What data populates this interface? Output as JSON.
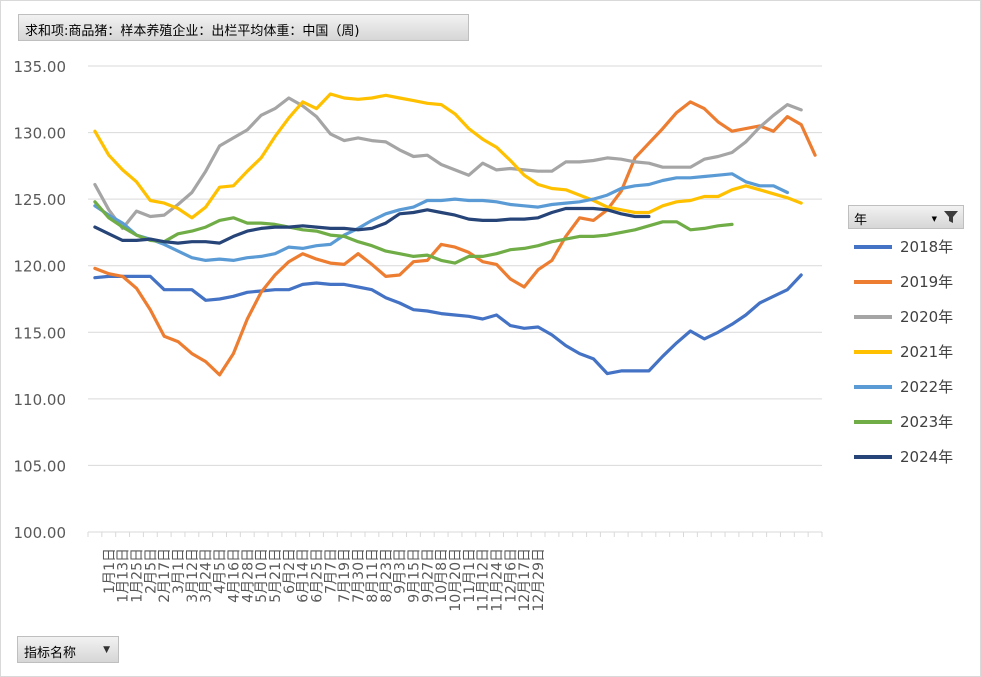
{
  "header": {
    "title": "求和项:商品猪：样本养殖企业：出栏平均体重：中国（周)"
  },
  "footer": {
    "field_label": "指标名称"
  },
  "legend": {
    "title": "年"
  },
  "chart_data": {
    "type": "line",
    "title": "",
    "ylim": [
      100,
      135
    ],
    "yticks": [
      "135.00",
      "130.00",
      "125.00",
      "120.00",
      "115.00",
      "110.00",
      "105.00",
      "100.00"
    ],
    "ytick_values": [
      135,
      130,
      125,
      120,
      115,
      110,
      105,
      100
    ],
    "x_count": 53,
    "x_labels": [
      "1月1日",
      "1月13日",
      "1月25日",
      "2月5日",
      "2月17日",
      "3月1日",
      "3月12日",
      "3月24日",
      "4月5日",
      "4月16日",
      "4月28日",
      "5月10日",
      "5月21日",
      "6月2日",
      "6月14日",
      "6月25日",
      "7月7日",
      "7月19日",
      "7月30日",
      "8月11日",
      "8月23日",
      "9月3日",
      "9月15日",
      "9月27日",
      "10月8日",
      "10月20日",
      "11月1日",
      "11月12日",
      "11月24日",
      "12月6日",
      "12月17日",
      "12月29日"
    ],
    "x_label_positions": [
      1,
      2,
      3,
      4,
      5,
      6,
      7,
      8,
      9,
      10,
      11,
      12,
      13,
      14,
      15,
      16,
      17,
      18,
      19,
      20,
      21,
      22,
      23,
      24,
      25,
      26,
      27,
      28,
      29,
      30,
      31,
      32
    ],
    "grid": true,
    "legend_position": "right",
    "series": [
      {
        "name": "2018年",
        "color": "#4472C4",
        "values": [
          119.1,
          119.2,
          119.2,
          119.2,
          119.2,
          118.2,
          118.2,
          118.2,
          117.4,
          117.5,
          117.7,
          118.0,
          118.1,
          118.2,
          118.2,
          118.6,
          118.7,
          118.6,
          118.6,
          118.4,
          118.2,
          117.6,
          117.2,
          116.7,
          116.6,
          116.4,
          116.3,
          116.2,
          116.0,
          116.3,
          115.5,
          115.3,
          115.4,
          114.8,
          114.0,
          113.4,
          113.0,
          111.9,
          112.1,
          112.1,
          112.1,
          113.2,
          114.2,
          115.1,
          114.5,
          115.0,
          115.6,
          116.3,
          117.2,
          117.7,
          118.2,
          119.3
        ]
      },
      {
        "name": "2019年",
        "color": "#ED7D31",
        "values": [
          119.8,
          119.4,
          119.2,
          118.3,
          116.7,
          114.7,
          114.3,
          113.4,
          112.8,
          111.8,
          113.4,
          116.0,
          118.0,
          119.3,
          120.3,
          120.9,
          120.5,
          120.2,
          120.1,
          120.9,
          120.1,
          119.2,
          119.3,
          120.3,
          120.4,
          121.6,
          121.4,
          121.0,
          120.3,
          120.1,
          119.0,
          118.4,
          119.7,
          120.4,
          122.2,
          123.6,
          123.4,
          124.2,
          125.6,
          128.1,
          129.2,
          130.3,
          131.5,
          132.3,
          131.8,
          130.8,
          130.1,
          130.3,
          130.5,
          130.1,
          131.2,
          130.6,
          128.3
        ]
      },
      {
        "name": "2020年",
        "color": "#A5A5A5",
        "values": [
          126.1,
          124.2,
          122.8,
          124.1,
          123.7,
          123.8,
          124.6,
          125.5,
          127.1,
          129.0,
          129.6,
          130.2,
          131.3,
          131.8,
          132.6,
          132.0,
          131.2,
          129.9,
          129.4,
          129.6,
          129.4,
          129.3,
          128.7,
          128.2,
          128.3,
          127.6,
          127.2,
          126.8,
          127.7,
          127.2,
          127.3,
          127.2,
          127.1,
          127.1,
          127.8,
          127.8,
          127.9,
          128.1,
          128.0,
          127.8,
          127.7,
          127.4,
          127.4,
          127.4,
          128.0,
          128.2,
          128.5,
          129.3,
          130.4,
          131.3,
          132.1,
          131.7
        ]
      },
      {
        "name": "2021年",
        "color": "#FFC000",
        "values": [
          130.1,
          128.3,
          127.2,
          126.3,
          124.9,
          124.7,
          124.3,
          123.6,
          124.4,
          125.9,
          126.0,
          127.1,
          128.1,
          129.7,
          131.1,
          132.3,
          131.8,
          132.9,
          132.6,
          132.5,
          132.6,
          132.8,
          132.6,
          132.4,
          132.2,
          132.1,
          131.4,
          130.3,
          129.5,
          128.9,
          127.9,
          126.8,
          126.1,
          125.8,
          125.7,
          125.3,
          124.9,
          124.4,
          124.2,
          124.0,
          124.0,
          124.5,
          124.8,
          124.9,
          125.2,
          125.2,
          125.7,
          126.0,
          125.7,
          125.4,
          125.1,
          124.7
        ]
      },
      {
        "name": "2022年",
        "color": "#5B9BD5",
        "values": [
          124.5,
          123.8,
          123.2,
          122.3,
          122.0,
          121.6,
          121.1,
          120.6,
          120.4,
          120.5,
          120.4,
          120.6,
          120.7,
          120.9,
          121.4,
          121.3,
          121.5,
          121.6,
          122.3,
          122.8,
          123.4,
          123.9,
          124.2,
          124.4,
          124.9,
          124.9,
          125.0,
          124.9,
          124.9,
          124.8,
          124.6,
          124.5,
          124.4,
          124.6,
          124.7,
          124.8,
          125.0,
          125.3,
          125.8,
          126.0,
          126.1,
          126.4,
          126.6,
          126.6,
          126.7,
          126.8,
          126.9,
          126.3,
          126.0,
          126.0,
          125.5
        ]
      },
      {
        "name": "2023年",
        "color": "#70AD47",
        "values": [
          124.8,
          123.6,
          122.9,
          122.3,
          121.9,
          121.8,
          122.4,
          122.6,
          122.9,
          123.4,
          123.6,
          123.2,
          123.2,
          123.1,
          122.9,
          122.7,
          122.6,
          122.3,
          122.2,
          121.8,
          121.5,
          121.1,
          120.9,
          120.7,
          120.8,
          120.4,
          120.2,
          120.7,
          120.7,
          120.9,
          121.2,
          121.3,
          121.5,
          121.8,
          122.0,
          122.2,
          122.2,
          122.3,
          122.5,
          122.7,
          123.0,
          123.3,
          123.3,
          122.7,
          122.8,
          123.0,
          123.1
        ]
      },
      {
        "name": "2024年",
        "color": "#264478",
        "values": [
          122.9,
          122.4,
          121.9,
          121.9,
          122.0,
          121.8,
          121.7,
          121.8,
          121.8,
          121.7,
          122.2,
          122.6,
          122.8,
          122.9,
          122.9,
          123.0,
          122.9,
          122.8,
          122.8,
          122.7,
          122.8,
          123.2,
          123.9,
          124.0,
          124.2,
          124.0,
          123.8,
          123.5,
          123.4,
          123.4,
          123.5,
          123.5,
          123.6,
          124.0,
          124.3,
          124.3,
          124.3,
          124.2,
          123.9,
          123.7,
          123.7
        ]
      }
    ]
  }
}
